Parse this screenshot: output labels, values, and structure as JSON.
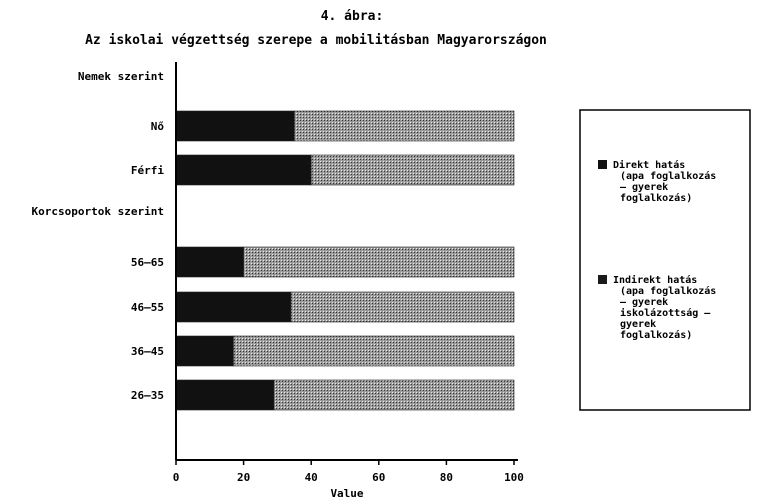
{
  "chart_data": {
    "type": "bar",
    "orientation": "horizontal",
    "stacked": true,
    "title_line1": "4. ábra:",
    "title_line2": "Az iskolai végzettség szerepe a mobilitásban Magyarországon",
    "xlabel": "Value",
    "xlim": [
      0,
      100
    ],
    "xticks": [
      "0",
      "20",
      "40",
      "60",
      "80",
      "100"
    ],
    "group_labels": [
      "Nemek szerint",
      "Korcsoportok szerint"
    ],
    "categories": [
      "Nő",
      "Férfi",
      "56–65",
      "46–55",
      "36–45",
      "26–35"
    ],
    "series": [
      {
        "name": "Direkt hatás (apa foglalkozás — gyerek foglalkozás)",
        "legend_lines": [
          "Direkt hatás",
          "(apa foglalkozás",
          "— gyerek",
          "foglalkozás)"
        ],
        "color": "#111111",
        "values": [
          35,
          40,
          20,
          34,
          17,
          29
        ]
      },
      {
        "name": "Indirekt hatás (apa foglalkozás — gyerek iskolázottság — gyerek foglalkozás)",
        "legend_lines": [
          "Indirekt hatás",
          "(apa foglalkozás",
          "— gyerek",
          "iskolázottság —",
          "gyerek",
          "foglalkozás)"
        ],
        "color": "#8a8a8a",
        "values": [
          65,
          60,
          80,
          66,
          83,
          71
        ]
      }
    ],
    "grid": false,
    "legend_position": "right"
  }
}
